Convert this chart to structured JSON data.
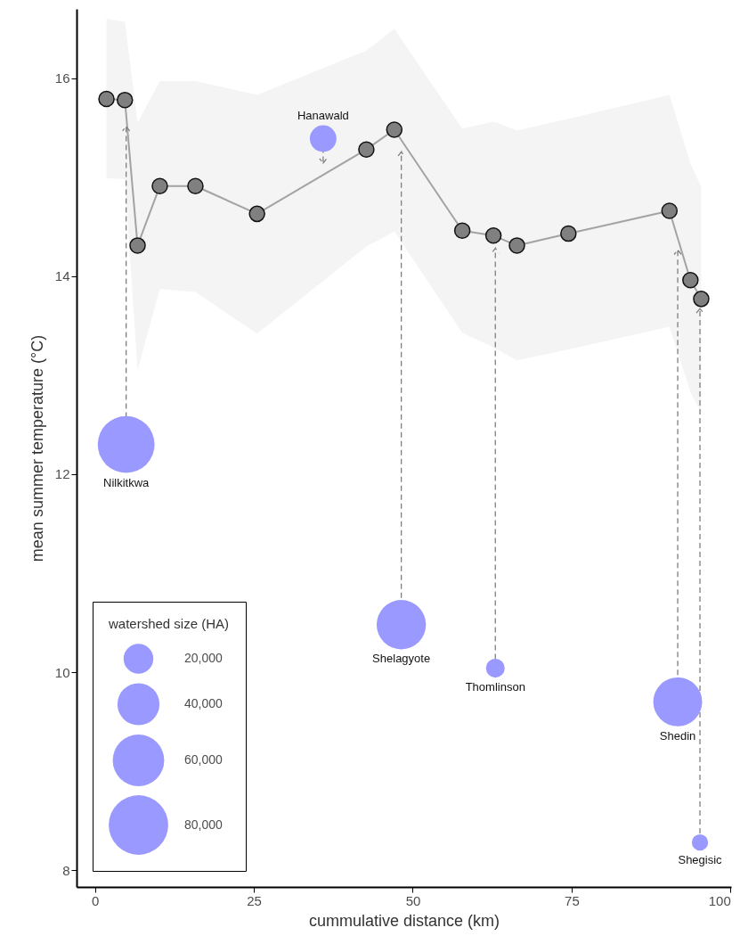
{
  "chart_data": {
    "type": "line",
    "xlabel": "cummulative distance (km)",
    "ylabel": "mean summer temperature (°C)",
    "legend_title": "watershed size (HA)",
    "marker": "circle",
    "grid": false,
    "xlim": [
      -2.9,
      100.1
    ],
    "xticks": [
      0,
      25,
      50,
      75,
      100
    ],
    "ylim": [
      7.83,
      16.7
    ],
    "yticks": [
      8,
      10,
      12,
      14,
      16
    ],
    "size_legend": [
      {
        "value": 20000,
        "label": "20,000"
      },
      {
        "value": 40000,
        "label": "40,000"
      },
      {
        "value": 60000,
        "label": "60,000"
      },
      {
        "value": 80000,
        "label": "80,000"
      }
    ],
    "series": [
      {
        "color": "#808080",
        "x": [
          1.8,
          4.7,
          6.7,
          10.2,
          15.8,
          25.5,
          42.7,
          47.1,
          57.8,
          62.7,
          66.4,
          74.5,
          90.4,
          93.7,
          95.4
        ],
        "values": [
          15.79,
          15.78,
          14.31,
          14.91,
          14.91,
          14.63,
          15.28,
          15.48,
          14.46,
          14.41,
          14.31,
          14.43,
          14.66,
          13.96,
          13.77
        ],
        "lower": [
          14.99,
          14.98,
          13.05,
          13.87,
          13.84,
          13.42,
          14.3,
          14.45,
          13.43,
          13.28,
          13.15,
          13.26,
          13.49,
          12.83,
          12.62
        ],
        "upper": [
          16.6,
          16.57,
          15.55,
          15.97,
          15.97,
          15.83,
          16.28,
          16.5,
          15.49,
          15.56,
          15.47,
          15.59,
          15.83,
          15.14,
          14.9
        ]
      },
      {
        "type": "bubble",
        "color": "#9999ff",
        "x": [
          4.9,
          35.9,
          48.2,
          63.0,
          91.7,
          95.2
        ],
        "values": [
          12.3,
          15.39,
          10.48,
          10.04,
          9.7,
          8.28
        ],
        "sizes": [
          73000,
          16000,
          55000,
          8000,
          54000,
          6000
        ],
        "value_labels": [
          "Nilkitkwa",
          "Hanawald",
          "Shelagyote",
          "Thomlinson",
          "Shedin",
          "Shegisic"
        ]
      }
    ]
  }
}
